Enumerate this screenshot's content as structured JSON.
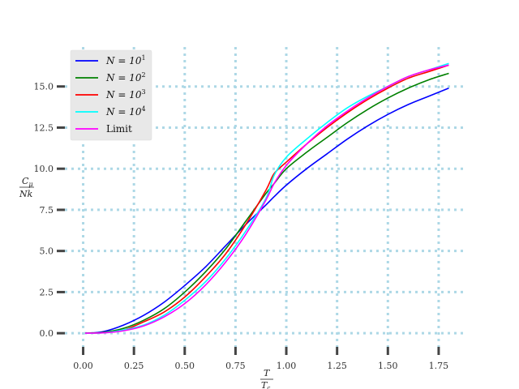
{
  "chart_data": {
    "type": "line",
    "title": "",
    "xlabel": {
      "numerator": "T",
      "denominator": "T",
      "denominator_sub": "c"
    },
    "ylabel": {
      "numerator": "C",
      "numerator_sub": "μ",
      "denominator": "Nk"
    },
    "xlim": [
      -0.09,
      1.89
    ],
    "ylim": [
      -0.83,
      17.4
    ],
    "xticks": [
      0.0,
      0.25,
      0.5,
      0.75,
      1.0,
      1.25,
      1.5,
      1.75
    ],
    "xtick_labels": [
      "0.00",
      "0.25",
      "0.50",
      "0.75",
      "1.00",
      "1.25",
      "1.50",
      "1.75"
    ],
    "yticks": [
      0.0,
      2.5,
      5.0,
      7.5,
      10.0,
      12.5,
      15.0
    ],
    "ytick_labels": [
      "0.0",
      "2.5",
      "5.0",
      "7.5",
      "10.0",
      "12.5",
      "15.0"
    ],
    "grid": true,
    "grid_color": "#add8e6",
    "legend_position": "top-left",
    "x": [
      0.01,
      0.1,
      0.2,
      0.3,
      0.4,
      0.5,
      0.6,
      0.7,
      0.8,
      0.9,
      0.94,
      1.0,
      1.1,
      1.2,
      1.3,
      1.4,
      1.5,
      1.6,
      1.7,
      1.8
    ],
    "series": [
      {
        "name": "N = 10",
        "exp": "1",
        "color": "#0000ff",
        "values": [
          0.0,
          0.1,
          0.5,
          1.1,
          1.9,
          2.9,
          4.0,
          5.3,
          6.6,
          7.8,
          8.3,
          9.0,
          10.0,
          10.9,
          11.8,
          12.6,
          13.3,
          13.9,
          14.4,
          14.9
        ]
      },
      {
        "name": "N = 10",
        "exp": "2",
        "color": "#008000",
        "values": [
          0.0,
          0.05,
          0.3,
          0.8,
          1.5,
          2.5,
          3.7,
          5.1,
          6.8,
          8.5,
          9.1,
          10.0,
          11.0,
          11.9,
          12.8,
          13.6,
          14.3,
          14.9,
          15.4,
          15.8
        ]
      },
      {
        "name": "N = 10",
        "exp": "3",
        "color": "#ff0000",
        "values": [
          0.0,
          0.03,
          0.2,
          0.7,
          1.3,
          2.2,
          3.4,
          4.8,
          6.6,
          8.7,
          9.7,
          10.4,
          11.5,
          12.5,
          13.4,
          14.2,
          14.9,
          15.5,
          15.9,
          16.3
        ]
      },
      {
        "name": "N = 10",
        "exp": "4",
        "color": "#00ffff",
        "values": [
          0.0,
          0.02,
          0.2,
          0.5,
          1.1,
          2.0,
          3.1,
          4.5,
          6.2,
          8.2,
          9.6,
          10.7,
          11.8,
          12.8,
          13.7,
          14.4,
          15.0,
          15.6,
          16.0,
          16.4
        ]
      },
      {
        "name": "Limit",
        "exp": "",
        "color": "#ff00ff",
        "values": [
          0.0,
          0.02,
          0.15,
          0.45,
          1.0,
          1.8,
          2.9,
          4.3,
          6.0,
          8.1,
          9.1,
          10.2,
          11.5,
          12.6,
          13.5,
          14.3,
          15.0,
          15.6,
          16.0,
          16.3
        ]
      }
    ]
  }
}
